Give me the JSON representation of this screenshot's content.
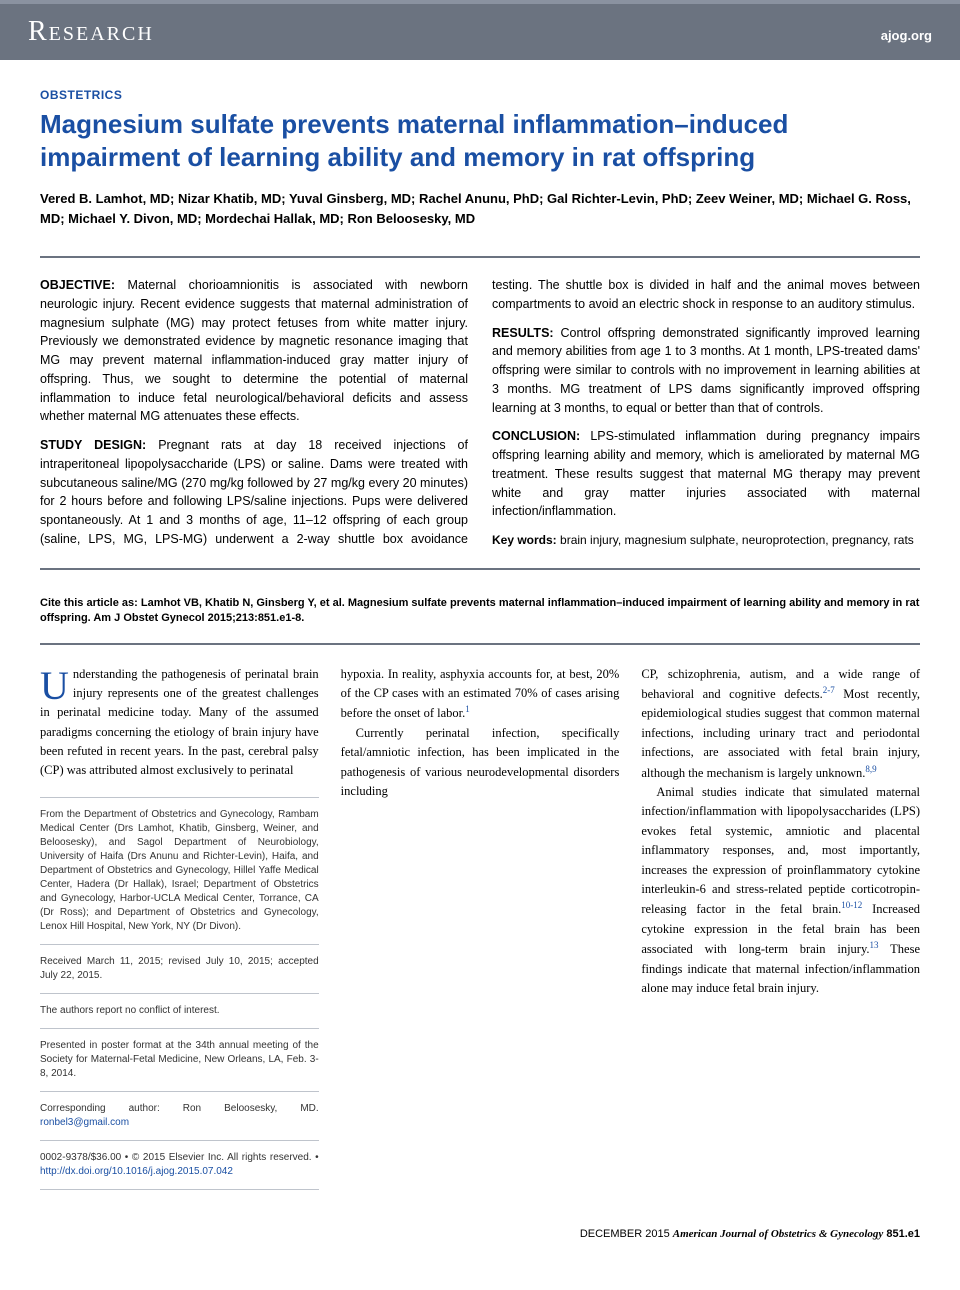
{
  "header": {
    "left": "Research",
    "right": "ajog.org"
  },
  "sectionHeading": "OBSTETRICS",
  "title": "Magnesium sulfate prevents maternal inflammation–induced impairment of learning ability and memory in rat offspring",
  "authors": "Vered B. Lamhot, MD; Nizar Khatib, MD; Yuval Ginsberg, MD; Rachel Anunu, PhD; Gal Richter-Levin, PhD; Zeev Weiner, MD; Michael G. Ross, MD; Michael Y. Divon, MD; Mordechai Hallak, MD; Ron Beloosesky, MD",
  "abstract": {
    "objective": {
      "label": "OBJECTIVE:",
      "text": "Maternal chorioamnionitis is associated with newborn neurologic injury. Recent evidence suggests that maternal administration of magnesium sulphate (MG) may protect fetuses from white matter injury. Previously we demonstrated evidence by magnetic resonance imaging that MG may prevent maternal inflammation-induced gray matter injury of offspring. Thus, we sought to determine the potential of maternal inflammation to induce fetal neurological/behavioral deficits and assess whether maternal MG attenuates these effects."
    },
    "studyDesign": {
      "label": "STUDY DESIGN:",
      "text": "Pregnant rats at day 18 received injections of intraperitoneal lipopolysaccharide (LPS) or saline. Dams were treated with subcutaneous saline/MG (270 mg/kg followed by 27 mg/kg every 20 minutes) for 2 hours before and following LPS/saline injections. Pups were delivered spontaneously. At 1 and 3 months of age, 11–12 offspring of each group (saline, LPS, MG, LPS-MG) underwent a 2-way shuttle box avoidance testing. The shuttle box is divided in half and the animal moves between compartments to avoid an electric shock in response to an auditory stimulus."
    },
    "results": {
      "label": "RESULTS:",
      "text": "Control offspring demonstrated significantly improved learning and memory abilities from age 1 to 3 months. At 1 month, LPS-treated dams' offspring were similar to controls with no improvement in learning abilities at 3 months. MG treatment of LPS dams significantly improved offspring learning at 3 months, to equal or better than that of controls."
    },
    "conclusion": {
      "label": "CONCLUSION:",
      "text": "LPS-stimulated inflammation during pregnancy impairs offspring learning ability and memory, which is ameliorated by maternal MG treatment. These results suggest that maternal MG therapy may prevent white and gray matter injuries associated with maternal infection/inflammation."
    },
    "keywords": {
      "label": "Key words:",
      "text": "brain injury, magnesium sulphate, neuroprotection, pregnancy, rats"
    }
  },
  "citation": "Cite this article as: Lamhot VB, Khatib N, Ginsberg Y, et al. Magnesium sulfate prevents maternal inflammation–induced impairment of learning ability and memory in rat offspring. Am J Obstet Gynecol 2015;213:851.e1-8.",
  "body": {
    "col1p1": "nderstanding the pathogenesis of perinatal brain injury represents one of the greatest challenges in perinatal medicine today. Many of the assumed paradigms concerning the etiology of brain injury have been refuted in recent years. In the past, cerebral palsy (CP) was attributed almost exclusively to perinatal",
    "dropcap": "U",
    "col2p1": "hypoxia. In reality, asphyxia accounts for, at best, 20% of the CP cases with an estimated 70% of cases arising before the onset of labor.",
    "col2ref1": "1",
    "col2p2": "Currently perinatal infection, specifically fetal/amniotic infection, has been implicated in the pathogenesis of various neurodevelopmental disorders including",
    "col3p1": "CP, schizophrenia, autism, and a wide range of behavioral and cognitive defects.",
    "col3ref1": "2-7",
    "col3p1b": " Most recently, epidemiological studies suggest that common maternal infections, including urinary tract and periodontal infections, are associated with fetal brain injury, although the mechanism is largely unknown.",
    "col3ref2": "8,9",
    "col3p2": "Animal studies indicate that simulated maternal infection/inflammation with lipopolysaccharides (LPS) evokes fetal systemic, amniotic and placental inflammatory responses, and, most importantly, increases the expression of proinflammatory cytokine interleukin-6 and stress-related peptide corticotropin-releasing factor in the fetal brain.",
    "col3ref3": "10-12",
    "col3p2b": " Increased cytokine expression in the fetal brain has been associated with long-term brain injury.",
    "col3ref4": "13",
    "col3p2c": " These findings indicate that maternal infection/inflammation alone may induce fetal brain injury."
  },
  "footnotes": {
    "affil": "From the Department of Obstetrics and Gynecology, Rambam Medical Center (Drs Lamhot, Khatib, Ginsberg, Weiner, and Beloosesky), and Sagol Department of Neurobiology, University of Haifa (Drs Anunu and Richter-Levin), Haifa, and Department of Obstetrics and Gynecology, Hillel Yaffe Medical Center, Hadera (Dr Hallak), Israel; Department of Obstetrics and Gynecology, Harbor-UCLA Medical Center, Torrance, CA (Dr Ross); and Department of Obstetrics and Gynecology, Lenox Hill Hospital, New York, NY (Dr Divon).",
    "dates": "Received March 11, 2015; revised July 10, 2015; accepted July 22, 2015.",
    "conflict": "The authors report no conflict of interest.",
    "presented": "Presented in poster format at the 34th annual meeting of the Society for Maternal-Fetal Medicine, New Orleans, LA, Feb. 3-8, 2014.",
    "corresponding": "Corresponding author: Ron Beloosesky, MD. ",
    "email": "ronbel3@gmail.com",
    "copyright": "0002-9378/$36.00 • © 2015 Elsevier Inc. All rights reserved. • ",
    "doi": "http://dx.doi.org/10.1016/j.ajog.2015.07.042"
  },
  "footer": {
    "month": "DECEMBER 2015",
    "journal": "American Journal of Obstetrics & Gynecology",
    "page": "851.e1"
  },
  "colors": {
    "headerBg": "#6b7380",
    "accentBlue": "#1a4fa3",
    "dividerGray": "#6b7380",
    "thinDivider": "#bfc4cc"
  },
  "typography": {
    "titleSize": 26,
    "bodySize": 12.5,
    "abstractSize": 12.5,
    "footnoteSize": 10
  }
}
